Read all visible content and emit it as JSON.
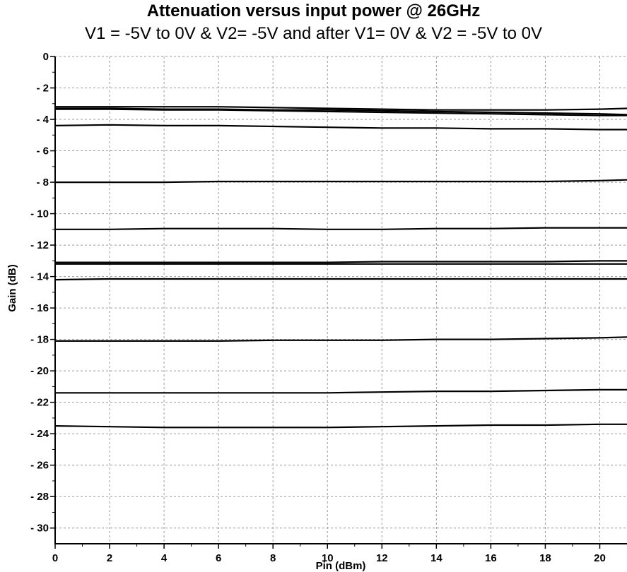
{
  "chart_data": {
    "type": "line",
    "title": "Attenuation versus input power @ 26GHz",
    "subtitle": "V1 = -5V to 0V & V2= -5V and after V1= 0V & V2 = -5V to 0V",
    "xlabel": "Pin (dBm)",
    "ylabel": "Gain (dB)",
    "xlim": [
      0,
      21
    ],
    "ylim": [
      -31,
      0
    ],
    "xticks": [
      0,
      2,
      4,
      6,
      8,
      10,
      12,
      14,
      16,
      18,
      20
    ],
    "yticks": [
      0,
      -2,
      -4,
      -6,
      -8,
      -10,
      -12,
      -14,
      -16,
      -18,
      -20,
      -22,
      -24,
      -26,
      -28,
      -30
    ],
    "xtick_labels": [
      "0",
      "2",
      "4",
      "6",
      "8",
      "10",
      "12",
      "14",
      "16",
      "18",
      "20"
    ],
    "ytick_labels": [
      "0",
      "- 2",
      "- 4",
      "- 6",
      "- 8",
      "- 10",
      "- 12",
      "- 14",
      "- 16",
      "- 18",
      "- 20",
      "- 22",
      "- 24",
      "- 26",
      "- 28",
      "- 30"
    ],
    "grid": true,
    "x": [
      0,
      2,
      4,
      6,
      8,
      10,
      12,
      14,
      16,
      18,
      20,
      21
    ],
    "series": [
      {
        "values": [
          -3.2,
          -3.2,
          -3.2,
          -3.2,
          -3.25,
          -3.3,
          -3.35,
          -3.4,
          -3.4,
          -3.4,
          -3.35,
          -3.3
        ]
      },
      {
        "values": [
          -3.3,
          -3.3,
          -3.35,
          -3.35,
          -3.4,
          -3.4,
          -3.45,
          -3.5,
          -3.55,
          -3.6,
          -3.65,
          -3.7
        ]
      },
      {
        "values": [
          -3.35,
          -3.35,
          -3.4,
          -3.4,
          -3.45,
          -3.5,
          -3.55,
          -3.6,
          -3.65,
          -3.7,
          -3.75,
          -3.75
        ]
      },
      {
        "values": [
          -4.4,
          -4.35,
          -4.4,
          -4.4,
          -4.45,
          -4.5,
          -4.55,
          -4.55,
          -4.6,
          -4.6,
          -4.65,
          -4.65
        ]
      },
      {
        "values": [
          -8.0,
          -8.0,
          -8.0,
          -7.95,
          -7.95,
          -7.95,
          -7.95,
          -7.95,
          -7.95,
          -7.95,
          -7.9,
          -7.85
        ]
      },
      {
        "values": [
          -11.0,
          -11.0,
          -10.95,
          -10.95,
          -10.95,
          -11.0,
          -11.0,
          -10.95,
          -10.95,
          -10.9,
          -10.9,
          -10.9
        ]
      },
      {
        "values": [
          -13.1,
          -13.1,
          -13.1,
          -13.1,
          -13.1,
          -13.1,
          -13.05,
          -13.05,
          -13.05,
          -13.05,
          -13.0,
          -13.0
        ]
      },
      {
        "values": [
          -13.2,
          -13.2,
          -13.2,
          -13.2,
          -13.2,
          -13.2,
          -13.2,
          -13.2,
          -13.2,
          -13.2,
          -13.2,
          -13.2
        ]
      },
      {
        "values": [
          -14.2,
          -14.15,
          -14.15,
          -14.15,
          -14.15,
          -14.15,
          -14.15,
          -14.15,
          -14.15,
          -14.15,
          -14.15,
          -14.15
        ]
      },
      {
        "values": [
          -18.1,
          -18.1,
          -18.1,
          -18.1,
          -18.05,
          -18.05,
          -18.05,
          -18.0,
          -18.0,
          -17.95,
          -17.9,
          -17.85
        ]
      },
      {
        "values": [
          -21.4,
          -21.4,
          -21.4,
          -21.4,
          -21.4,
          -21.4,
          -21.35,
          -21.3,
          -21.3,
          -21.25,
          -21.2,
          -21.2
        ]
      },
      {
        "values": [
          -23.5,
          -23.55,
          -23.6,
          -23.6,
          -23.6,
          -23.6,
          -23.55,
          -23.5,
          -23.45,
          -23.45,
          -23.4,
          -23.4
        ]
      }
    ]
  }
}
